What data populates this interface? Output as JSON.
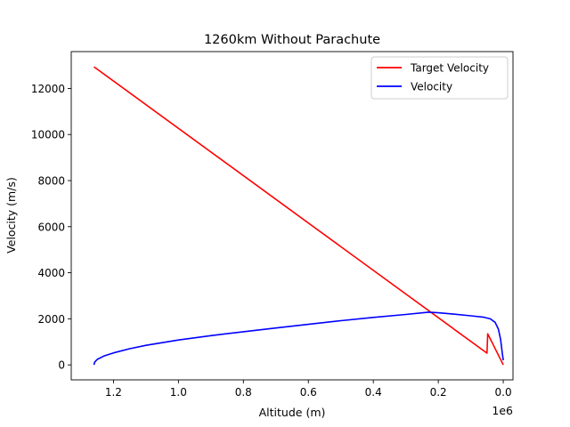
{
  "chart_data": {
    "type": "line",
    "title": "1260km Without Parachute",
    "xlabel": "Altitude (m)",
    "ylabel": "Velocity (m/s)",
    "x_offset_label": "1e6",
    "x_inverted": true,
    "xlim": [
      1330000,
      -30000
    ],
    "ylim": [
      -650,
      13600
    ],
    "x_ticks": [
      1200000,
      1000000,
      800000,
      600000,
      400000,
      200000,
      0
    ],
    "x_tick_labels": [
      "1.2",
      "1.0",
      "0.8",
      "0.6",
      "0.4",
      "0.2",
      "0.0"
    ],
    "y_ticks": [
      0,
      2000,
      4000,
      6000,
      8000,
      10000,
      12000
    ],
    "y_tick_labels": [
      "0",
      "2000",
      "4000",
      "6000",
      "8000",
      "10000",
      "12000"
    ],
    "grid": false,
    "legend_position": "upper-right",
    "series": [
      {
        "name": "Target Velocity",
        "color": "#ff0000",
        "x": [
          1260000,
          50000,
          48000,
          0
        ],
        "y": [
          12940,
          510,
          1350,
          0
        ]
      },
      {
        "name": "Velocity",
        "color": "#0000ff",
        "x": [
          1260000,
          1258000,
          1250000,
          1230000,
          1200000,
          1150000,
          1100000,
          1000000,
          900000,
          800000,
          700000,
          600000,
          500000,
          400000,
          300000,
          230000,
          200000,
          150000,
          100000,
          60000,
          40000,
          25000,
          15000,
          8000,
          3000,
          0
        ],
        "y": [
          0,
          120,
          240,
          380,
          520,
          700,
          850,
          1080,
          1270,
          1440,
          1600,
          1760,
          1920,
          2060,
          2190,
          2290,
          2260,
          2200,
          2130,
          2070,
          2000,
          1850,
          1550,
          1100,
          500,
          200
        ]
      }
    ]
  }
}
